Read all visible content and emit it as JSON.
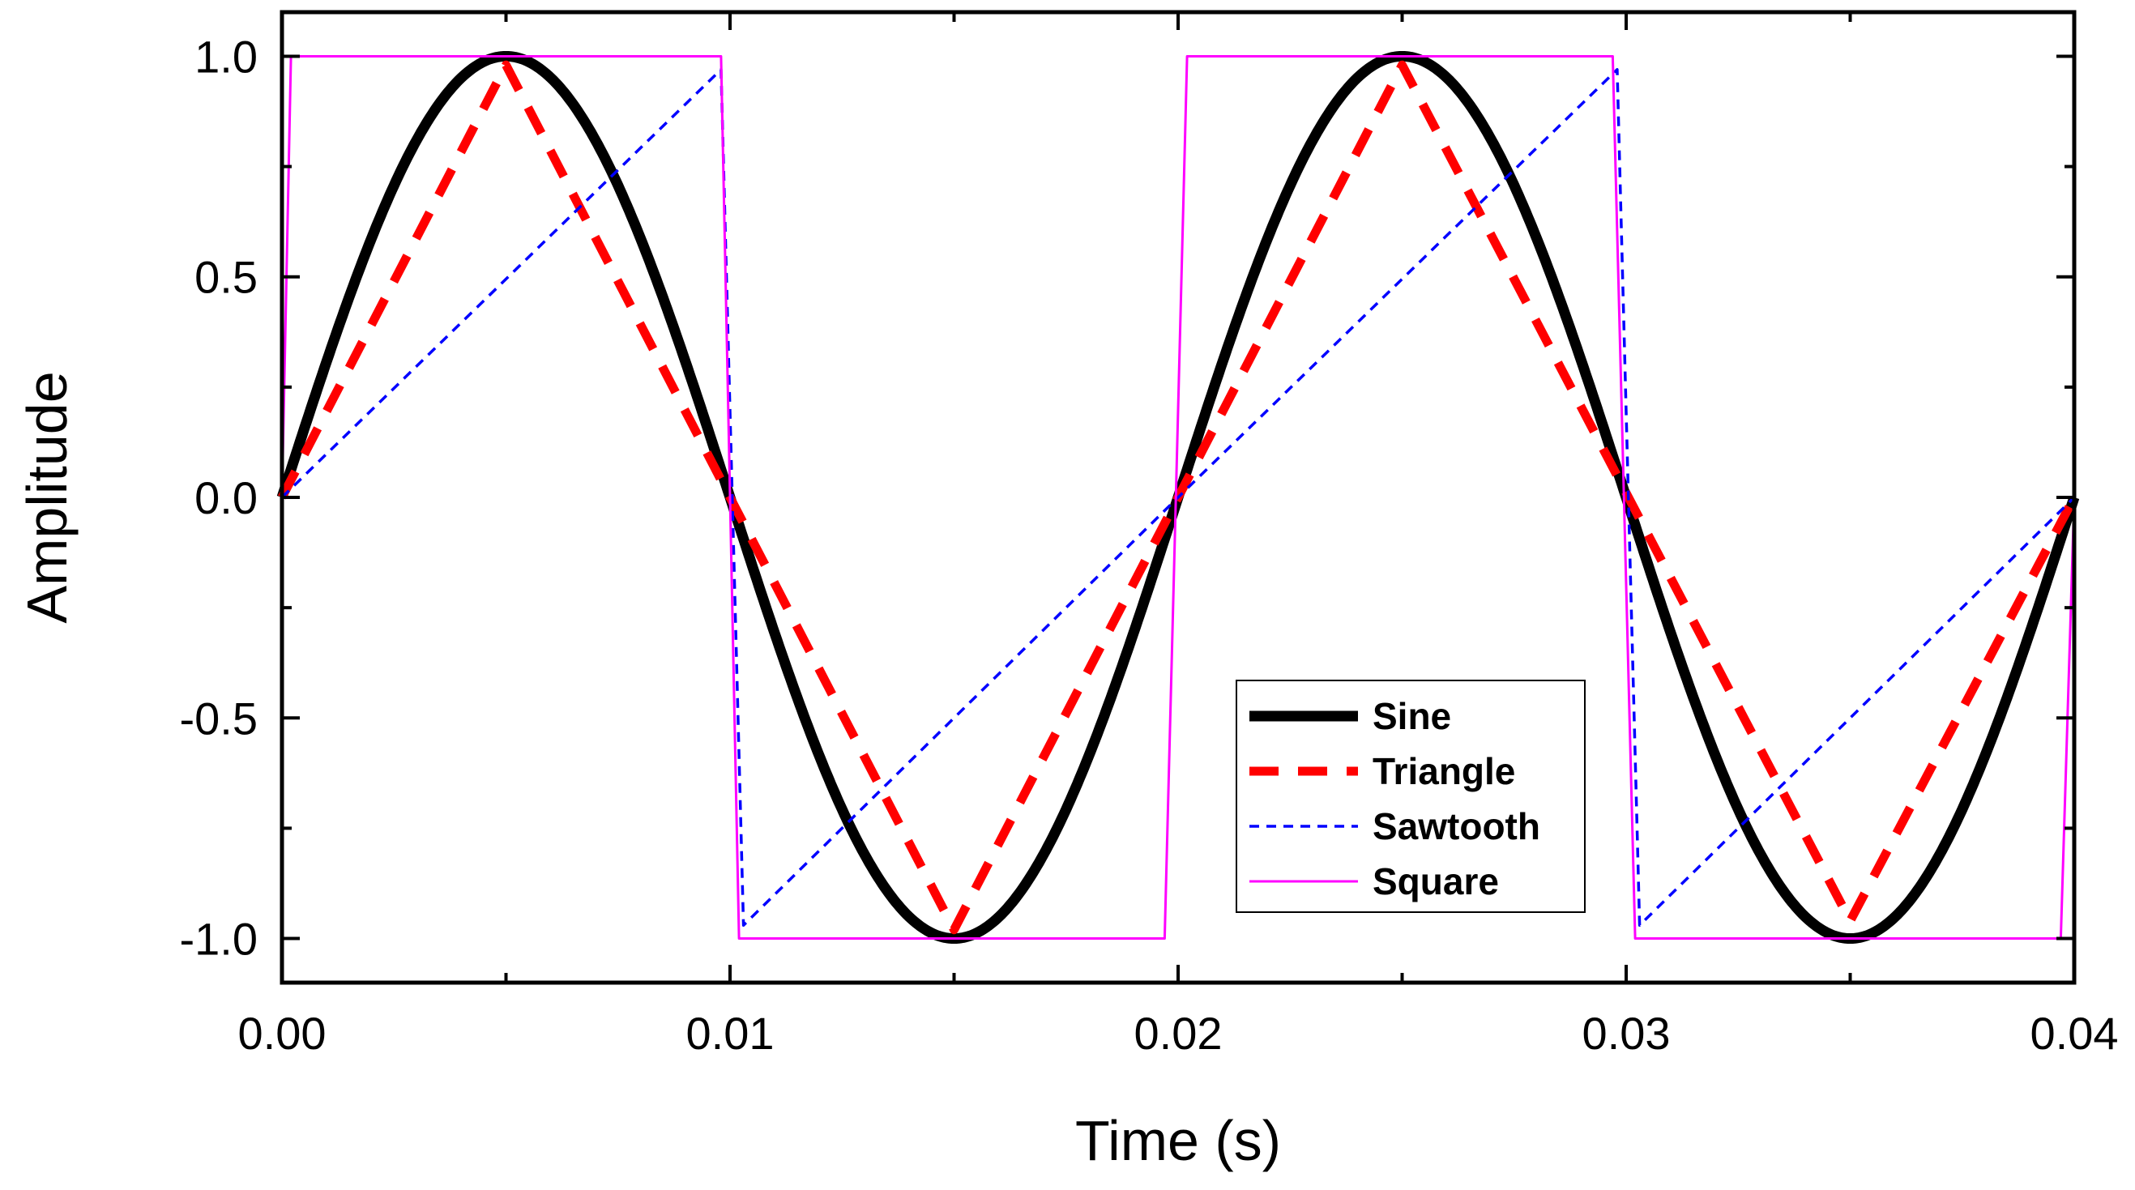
{
  "chart_data": {
    "type": "line",
    "title": "",
    "xlabel": "Time (s)",
    "ylabel": "Amplitude",
    "xlim": [
      0.0,
      0.04
    ],
    "ylim": [
      -1.1,
      1.1
    ],
    "x_ticks": [
      "0.00",
      "0.01",
      "0.02",
      "0.03",
      "0.04"
    ],
    "x_tick_values": [
      0.0,
      0.01,
      0.02,
      0.03,
      0.04
    ],
    "y_ticks": [
      "-1.0",
      "-0.5",
      "0.0",
      "0.5",
      "1.0"
    ],
    "y_tick_values": [
      -1.0,
      -0.5,
      0.0,
      0.5,
      1.0
    ],
    "grid": false,
    "legend_position": "bottom-right",
    "series": [
      {
        "name": "Sine",
        "color": "#000000",
        "style": "solid-thick",
        "x": [
          0.0,
          0.00125,
          0.0025,
          0.00375,
          0.005,
          0.00625,
          0.0075,
          0.00875,
          0.01,
          0.01125,
          0.0125,
          0.01375,
          0.015,
          0.01625,
          0.0175,
          0.01875,
          0.02,
          0.02125,
          0.0225,
          0.02375,
          0.025,
          0.02625,
          0.0275,
          0.02875,
          0.03,
          0.03125,
          0.0325,
          0.03375,
          0.035,
          0.03625,
          0.0375,
          0.03875,
          0.04
        ],
        "y": [
          0.0,
          0.383,
          0.707,
          0.924,
          1.0,
          0.924,
          0.707,
          0.383,
          0.0,
          -0.383,
          -0.707,
          -0.924,
          -1.0,
          -0.924,
          -0.707,
          -0.383,
          0.0,
          0.383,
          0.707,
          0.924,
          1.0,
          0.924,
          0.707,
          0.383,
          0.0,
          -0.383,
          -0.707,
          -0.924,
          -1.0,
          -0.924,
          -0.707,
          -0.383,
          0.0
        ]
      },
      {
        "name": "Triangle",
        "color": "#ff0000",
        "style": "dashed-thick",
        "x": [
          0.0,
          0.005,
          0.015,
          0.025,
          0.035,
          0.04
        ],
        "y": [
          0.0,
          0.98,
          -0.98,
          0.98,
          -0.96,
          0.0
        ]
      },
      {
        "name": "Sawtooth",
        "color": "#0000ff",
        "style": "dashed-thin",
        "x": [
          0.0,
          0.0098,
          0.0103,
          0.0197,
          0.0203,
          0.0298,
          0.0303,
          0.04
        ],
        "y": [
          0.0,
          0.97,
          -0.97,
          -0.03,
          0.03,
          0.97,
          -0.97,
          0.0
        ]
      },
      {
        "name": "Square",
        "color": "#ff00ff",
        "style": "solid-thin",
        "x": [
          0.0,
          0.0002,
          0.0098,
          0.0102,
          0.0197,
          0.0202,
          0.0297,
          0.0302,
          0.0397,
          0.04
        ],
        "y": [
          0.0,
          1.0,
          1.0,
          -1.0,
          -1.0,
          1.0,
          1.0,
          -1.0,
          -1.0,
          0.0
        ]
      }
    ]
  }
}
